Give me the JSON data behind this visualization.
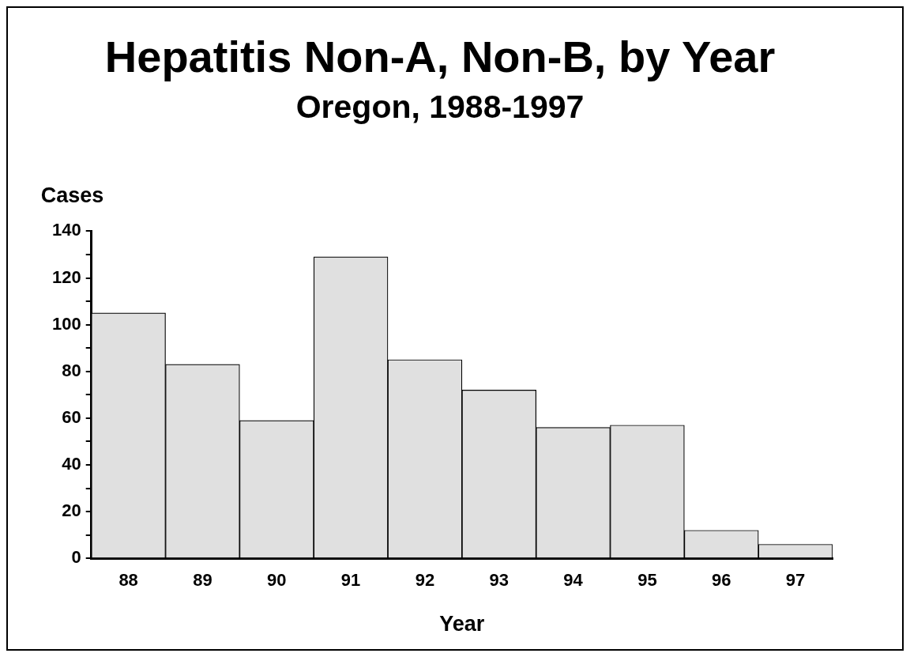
{
  "chart_data": {
    "type": "bar",
    "title": "Hepatitis Non-A, Non-B, by Year",
    "subtitle": "Oregon, 1988-1997",
    "xlabel": "Year",
    "ylabel": "Cases",
    "categories": [
      "88",
      "89",
      "90",
      "91",
      "92",
      "93",
      "94",
      "95",
      "96",
      "97"
    ],
    "values": [
      105,
      83,
      59,
      129,
      85,
      72,
      56,
      57,
      12,
      6
    ],
    "color": "#e0e0e0",
    "ylim": [
      0,
      140
    ],
    "yticks": [
      0,
      {
        "value": 10,
        "label": null
      },
      20,
      {
        "value": 30,
        "label": null
      },
      40,
      {
        "value": 50,
        "label": null
      },
      60,
      {
        "value": 70,
        "label": null
      },
      80,
      {
        "value": 90,
        "label": null
      },
      100,
      {
        "value": 110,
        "label": null
      },
      120,
      {
        "value": 130,
        "label": null
      },
      140
    ],
    "grid": false,
    "legend": false
  }
}
